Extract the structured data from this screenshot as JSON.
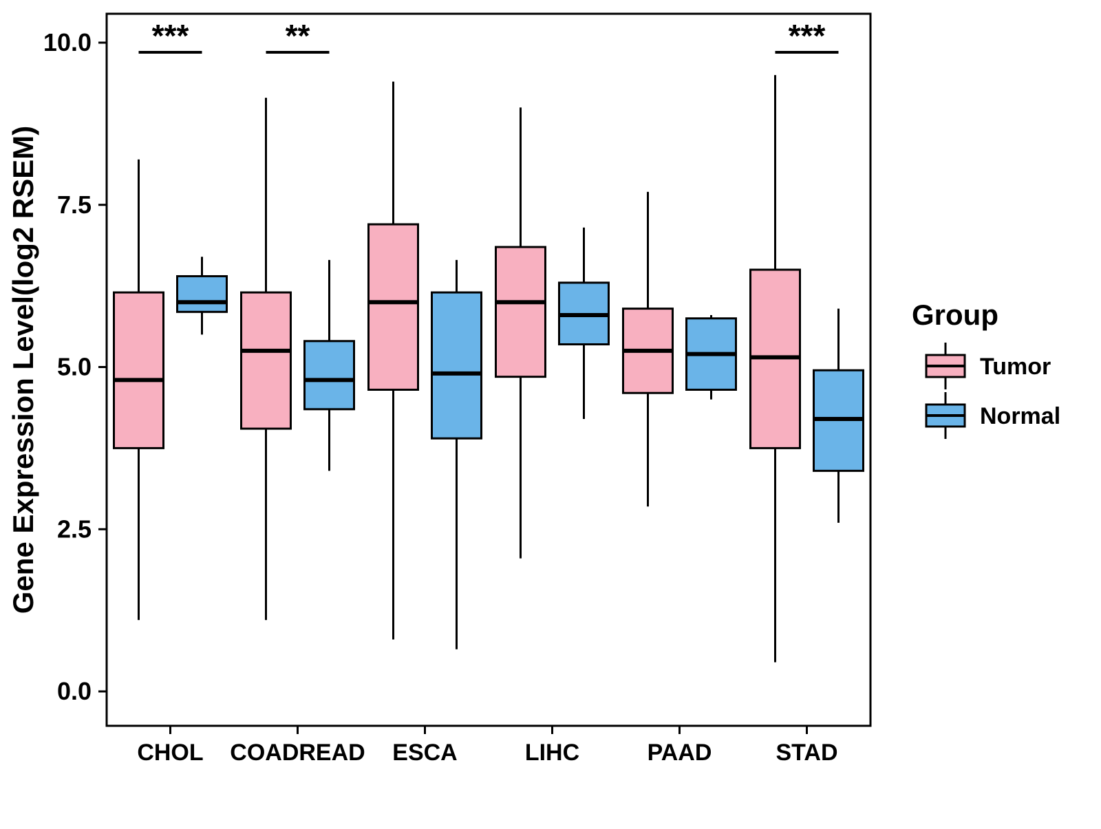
{
  "chart_data": {
    "type": "boxplot",
    "title": "",
    "xlabel": "",
    "ylabel": "Gene Expression Level(log2 RSEM)",
    "ylim": [
      0,
      10
    ],
    "yticks": [
      0.0,
      2.5,
      5.0,
      7.5,
      10.0
    ],
    "grid": false,
    "categories": [
      "CHOL",
      "COADREAD",
      "ESCA",
      "LIHC",
      "PAAD",
      "STAD"
    ],
    "series": [
      {
        "name": "Tumor",
        "color": "#F8B0C0",
        "boxes": [
          {
            "low": 1.1,
            "q1": 3.75,
            "med": 4.8,
            "q3": 6.15,
            "high": 8.2
          },
          {
            "low": 1.1,
            "q1": 4.05,
            "med": 5.25,
            "q3": 6.15,
            "high": 9.15
          },
          {
            "low": 0.8,
            "q1": 4.65,
            "med": 6.0,
            "q3": 7.2,
            "high": 9.4
          },
          {
            "low": 2.05,
            "q1": 4.85,
            "med": 6.0,
            "q3": 6.85,
            "high": 9.0
          },
          {
            "low": 2.85,
            "q1": 4.6,
            "med": 5.25,
            "q3": 5.9,
            "high": 7.7
          },
          {
            "low": 0.45,
            "q1": 3.75,
            "med": 5.15,
            "q3": 6.5,
            "high": 9.5
          }
        ]
      },
      {
        "name": "Normal",
        "color": "#6AB4E8",
        "boxes": [
          {
            "low": 5.5,
            "q1": 5.85,
            "med": 6.0,
            "q3": 6.4,
            "high": 6.7
          },
          {
            "low": 3.4,
            "q1": 4.35,
            "med": 4.8,
            "q3": 5.4,
            "high": 6.65
          },
          {
            "low": 0.65,
            "q1": 3.9,
            "med": 4.9,
            "q3": 6.15,
            "high": 6.65
          },
          {
            "low": 4.2,
            "q1": 5.35,
            "med": 5.8,
            "q3": 6.3,
            "high": 7.15
          },
          {
            "low": 4.5,
            "q1": 4.65,
            "med": 5.2,
            "q3": 5.75,
            "high": 5.8
          },
          {
            "low": 2.6,
            "q1": 3.4,
            "med": 4.2,
            "q3": 4.95,
            "high": 5.9
          }
        ]
      }
    ],
    "significance": [
      {
        "category": "CHOL",
        "label": "***"
      },
      {
        "category": "COADREAD",
        "label": "**"
      },
      {
        "category": "STAD",
        "label": "***"
      }
    ],
    "legend": {
      "title": "Group",
      "entries": [
        "Tumor",
        "Normal"
      ],
      "position": "right"
    }
  }
}
